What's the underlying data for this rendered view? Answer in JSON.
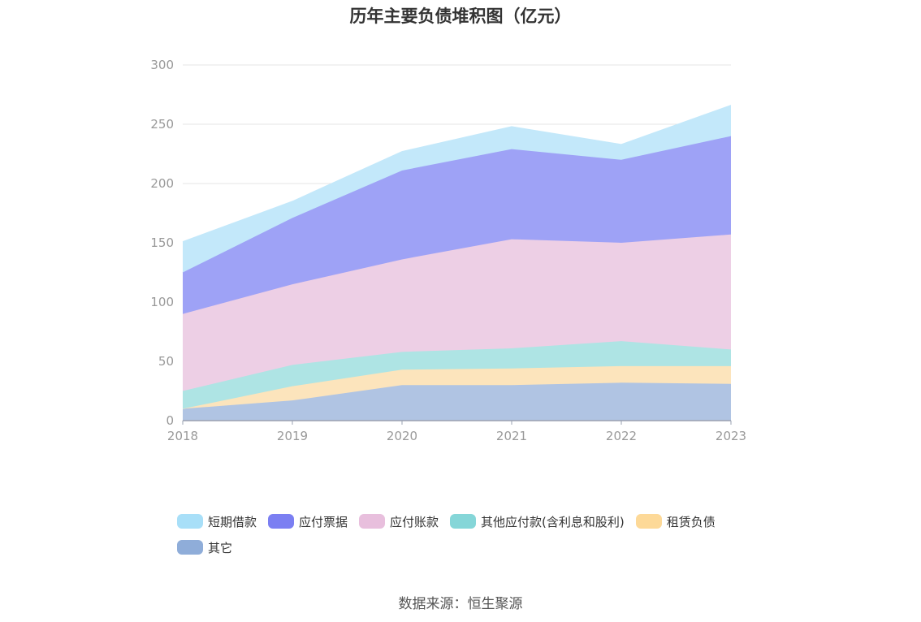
{
  "chart_data": {
    "type": "area",
    "stacked": true,
    "title": "历年主要负债堆积图（亿元）",
    "categories": [
      "2018",
      "2019",
      "2020",
      "2021",
      "2022",
      "2023"
    ],
    "y_ticks": [
      "0",
      "50",
      "100",
      "150",
      "200",
      "250",
      "300"
    ],
    "ylim": [
      0,
      300
    ],
    "grid": true,
    "legend_position": "bottom",
    "series": [
      {
        "name": "其它",
        "color": "#8fadd9",
        "fill": "#b0c4e3",
        "values": [
          10,
          17,
          30,
          30,
          32,
          31
        ]
      },
      {
        "name": "租赁负债",
        "color": "#fdd998",
        "fill": "#fce4bc",
        "values": [
          0,
          12,
          13,
          14,
          14,
          15
        ]
      },
      {
        "name": "其他应付款(含利息和股利)",
        "color": "#85d6d8",
        "fill": "#aee4e4",
        "values": [
          15,
          18,
          15,
          17,
          21,
          14
        ]
      },
      {
        "name": "应付账款",
        "color": "#e8bfdd",
        "fill": "#edcfe5",
        "values": [
          65,
          68,
          78,
          92,
          83,
          97
        ]
      },
      {
        "name": "应付票据",
        "color": "#7b7ff2",
        "fill": "#9ea2f6",
        "values": [
          35,
          56,
          75,
          76,
          70,
          83
        ]
      },
      {
        "name": "短期借款",
        "color": "#a8dff8",
        "fill": "#c3e8fa",
        "values": [
          26,
          14,
          16,
          19,
          13,
          26
        ]
      }
    ],
    "legend_order": [
      5,
      4,
      3,
      2,
      1,
      0
    ]
  },
  "source": "数据来源：恒生聚源"
}
